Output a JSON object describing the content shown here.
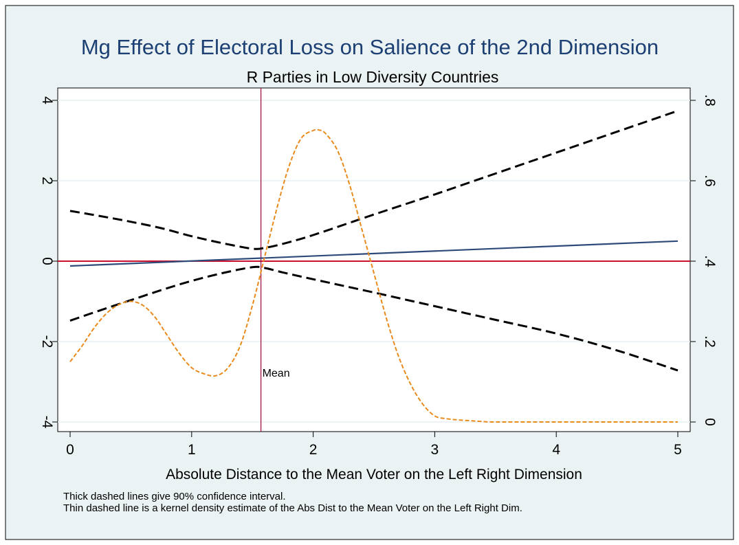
{
  "chart_data": {
    "type": "line",
    "title": "Mg Effect of Electoral Loss on Salience of the 2nd Dimension",
    "subtitle": "R Parties in Low Diversity Countries",
    "xlabel": "Absolute Distance to the Mean Voter on the Left Right Dimension",
    "ylabel": "",
    "ylabel_right": "",
    "xlim": [
      0,
      5
    ],
    "ylim": [
      -4,
      4
    ],
    "ylim_right": [
      0,
      0.8
    ],
    "x_ticks": [
      "0",
      "1",
      "2",
      "3",
      "4",
      "5"
    ],
    "y_ticks": [
      "-4",
      "-2",
      "0",
      "2",
      "4"
    ],
    "y_ticks_right": [
      "0",
      ".2",
      ".4",
      ".6",
      ".8"
    ],
    "grid": "horizontal",
    "reference_lines": [
      {
        "axis": "y",
        "value": 0,
        "color": "#c8102e"
      },
      {
        "axis": "x",
        "value": 1.57,
        "color": "#a0133f",
        "label": "Mean"
      }
    ],
    "series": [
      {
        "role": "marginal-effect",
        "color": "#2e4a7a",
        "axis": "left",
        "x": [
          0,
          5
        ],
        "y": [
          -0.12,
          0.5
        ]
      },
      {
        "role": "upper-ci",
        "color": "#000000",
        "axis": "left",
        "x": [
          0,
          0.25,
          0.5,
          0.75,
          1,
          1.25,
          1.5,
          1.6,
          1.75,
          2,
          2.5,
          3,
          3.5,
          4,
          4.5,
          5
        ],
        "y": [
          1.25,
          1.12,
          0.98,
          0.82,
          0.62,
          0.45,
          0.31,
          0.33,
          0.43,
          0.65,
          1.16,
          1.66,
          2.18,
          2.7,
          3.22,
          3.74
        ]
      },
      {
        "role": "lower-ci",
        "color": "#000000",
        "axis": "left",
        "x": [
          0,
          0.25,
          0.5,
          0.75,
          1,
          1.25,
          1.5,
          1.6,
          1.75,
          2,
          2.5,
          3,
          3.5,
          4,
          4.5,
          5
        ],
        "y": [
          -1.48,
          -1.22,
          -0.97,
          -0.72,
          -0.49,
          -0.3,
          -0.15,
          -0.17,
          -0.28,
          -0.45,
          -0.78,
          -1.12,
          -1.46,
          -1.8,
          -2.22,
          -2.72
        ]
      },
      {
        "role": "kernel-density",
        "color": "#e88a1c",
        "axis": "right",
        "x": [
          0,
          0.1,
          0.2,
          0.3,
          0.4,
          0.5,
          0.6,
          0.7,
          0.8,
          0.9,
          1.0,
          1.1,
          1.2,
          1.3,
          1.4,
          1.5,
          1.6,
          1.7,
          1.8,
          1.9,
          2.0,
          2.05,
          2.1,
          2.2,
          2.3,
          2.4,
          2.5,
          2.6,
          2.7,
          2.8,
          2.9,
          3.0,
          3.1,
          3.2,
          3.3,
          3.4,
          3.5,
          4.0,
          4.5,
          5.0
        ],
        "y": [
          0.15,
          0.19,
          0.235,
          0.27,
          0.292,
          0.3,
          0.29,
          0.26,
          0.215,
          0.17,
          0.135,
          0.12,
          0.115,
          0.135,
          0.19,
          0.29,
          0.41,
          0.53,
          0.635,
          0.705,
          0.725,
          0.726,
          0.718,
          0.675,
          0.59,
          0.48,
          0.37,
          0.26,
          0.165,
          0.095,
          0.045,
          0.015,
          0.008,
          0.005,
          0.003,
          0.001,
          0,
          0,
          0,
          0
        ]
      }
    ]
  },
  "notes": {
    "line1": "Thick dashed lines give 90% confidence interval.",
    "line2": "Thin dashed line is a kernel density estimate of the Abs Dist to the Mean Voter on the Left Right Dim."
  },
  "colors": {
    "background": "#eaf2f3",
    "plot_background": "#ffffff",
    "title": "#1c3f74"
  }
}
